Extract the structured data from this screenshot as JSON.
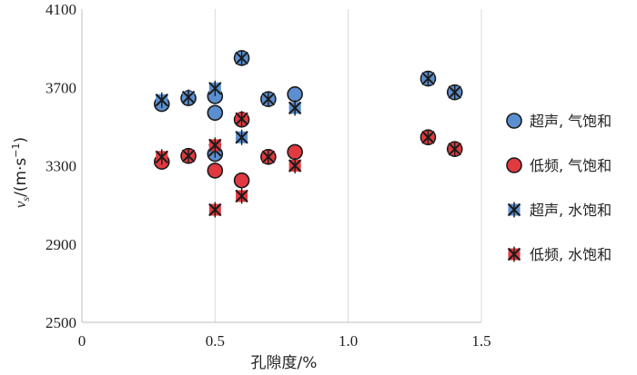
{
  "chart_data": {
    "type": "scatter",
    "xlabel": "孔隙度/%",
    "ylabel_parts": {
      "v": "v",
      "sub": "s",
      "unit_open": "/(m·s",
      "sup": "−1",
      "unit_close": ")"
    },
    "xlim": [
      0,
      1.5
    ],
    "ylim": [
      2500,
      4100
    ],
    "x_ticks": [
      "0",
      "0.5",
      "1.0",
      "1.5"
    ],
    "x_tick_values": [
      0,
      0.5,
      1.0,
      1.5
    ],
    "y_ticks": [
      "2500",
      "2900",
      "3300",
      "3700",
      "4100"
    ],
    "y_tick_values": [
      2500,
      2900,
      3300,
      3700,
      4100
    ],
    "grid": "vertical",
    "legend_position": "right",
    "series": [
      {
        "name": "超声, 气饱和",
        "marker": "circle",
        "color": "#5b8fd0",
        "points": [
          [
            0.3,
            3615
          ],
          [
            0.4,
            3645
          ],
          [
            0.5,
            3655
          ],
          [
            0.5,
            3570
          ],
          [
            0.5,
            3360
          ],
          [
            0.6,
            3850
          ],
          [
            0.7,
            3640
          ],
          [
            0.8,
            3665
          ],
          [
            1.3,
            3745
          ],
          [
            1.4,
            3675
          ]
        ]
      },
      {
        "name": "低频, 气饱和",
        "marker": "circle",
        "color": "#e03a40",
        "points": [
          [
            0.3,
            3320
          ],
          [
            0.4,
            3350
          ],
          [
            0.5,
            3275
          ],
          [
            0.6,
            3535
          ],
          [
            0.6,
            3225
          ],
          [
            0.7,
            3345
          ],
          [
            0.8,
            3370
          ],
          [
            1.3,
            3445
          ],
          [
            1.4,
            3385
          ]
        ]
      },
      {
        "name": "超声, 水饱和",
        "marker": "x-square",
        "color": "#5b8fd0",
        "points": [
          [
            0.3,
            3635
          ],
          [
            0.4,
            3650
          ],
          [
            0.5,
            3695
          ],
          [
            0.5,
            3380
          ],
          [
            0.6,
            3850
          ],
          [
            0.6,
            3445
          ],
          [
            0.7,
            3640
          ],
          [
            0.8,
            3595
          ],
          [
            1.3,
            3745
          ],
          [
            1.4,
            3675
          ]
        ]
      },
      {
        "name": "低频, 水饱和",
        "marker": "x-square",
        "color": "#e03a40",
        "points": [
          [
            0.3,
            3345
          ],
          [
            0.4,
            3350
          ],
          [
            0.5,
            3405
          ],
          [
            0.5,
            3075
          ],
          [
            0.6,
            3540
          ],
          [
            0.6,
            3145
          ],
          [
            0.7,
            3345
          ],
          [
            0.8,
            3300
          ],
          [
            1.3,
            3445
          ],
          [
            1.4,
            3385
          ]
        ]
      }
    ]
  }
}
